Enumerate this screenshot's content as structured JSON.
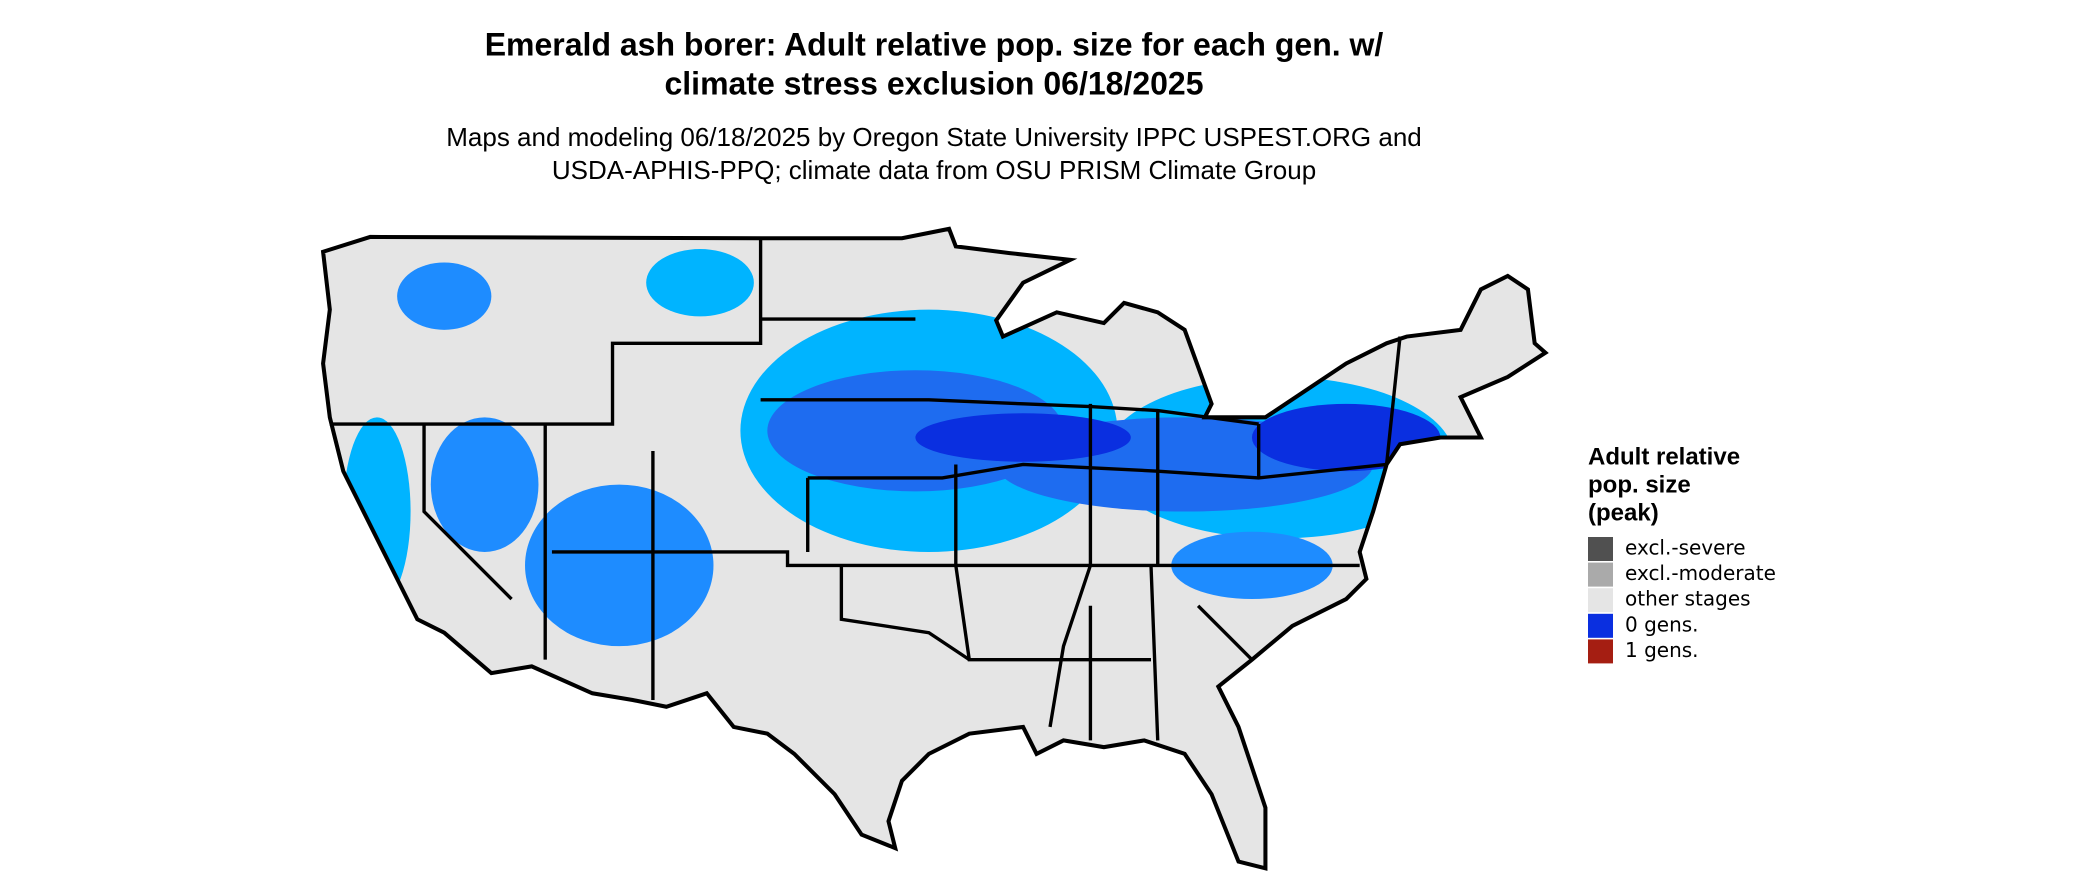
{
  "title": [
    "Emerald ash borer: Adult relative pop. size for each gen. w/",
    "climate stress exclusion 06/18/2025"
  ],
  "subtitle": [
    "Maps and modeling 06/18/2025 by Oregon State University IPPC USPEST.ORG and",
    "USDA-APHIS-PPQ; climate data from OSU PRISM Climate Group"
  ],
  "legend": {
    "title": [
      "Adult relative",
      "pop. size",
      "(peak)"
    ],
    "items": [
      {
        "label": "excl.-severe",
        "color": "#505050"
      },
      {
        "label": "excl.-moderate",
        "color": "#aaaaaa"
      },
      {
        "label": "other stages",
        "color": "#e5e5e5"
      },
      {
        "label": "0 gens.",
        "color": "#0a2fe0"
      },
      {
        "label": "1 gens.",
        "color": "#a51e12"
      }
    ]
  }
}
